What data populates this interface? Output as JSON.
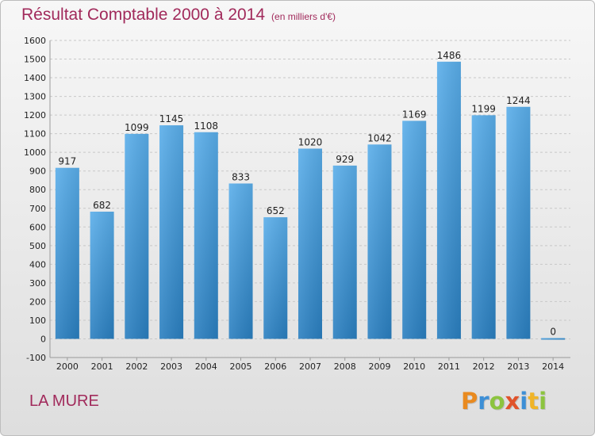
{
  "chart_data": {
    "type": "bar",
    "title": "Résultat Comptable 2000 à 2014",
    "unit": "(en milliers d'€)",
    "categories": [
      "2000",
      "2001",
      "2002",
      "2003",
      "2004",
      "2005",
      "2006",
      "2007",
      "2008",
      "2009",
      "2010",
      "2011",
      "2012",
      "2013",
      "2014"
    ],
    "values": [
      917,
      682,
      1099,
      1145,
      1108,
      833,
      652,
      1020,
      929,
      1042,
      1169,
      1486,
      1199,
      1244,
      0
    ],
    "ylim": [
      -100,
      1600
    ],
    "yticks": [
      -100,
      0,
      100,
      200,
      300,
      400,
      500,
      600,
      700,
      800,
      900,
      1000,
      1100,
      1200,
      1300,
      1400,
      1500,
      1600
    ],
    "grid": true,
    "bar_color": "#4a9fe0"
  },
  "location": "LA MURE",
  "logo": {
    "letters": [
      "P",
      "r",
      "o",
      "x",
      "i",
      "t",
      "i"
    ],
    "colors": [
      "#e98a1f",
      "#3d8fd6",
      "#8cc43f",
      "#e0532b",
      "#3d8fd6",
      "#f0b428",
      "#8cc43f"
    ]
  }
}
